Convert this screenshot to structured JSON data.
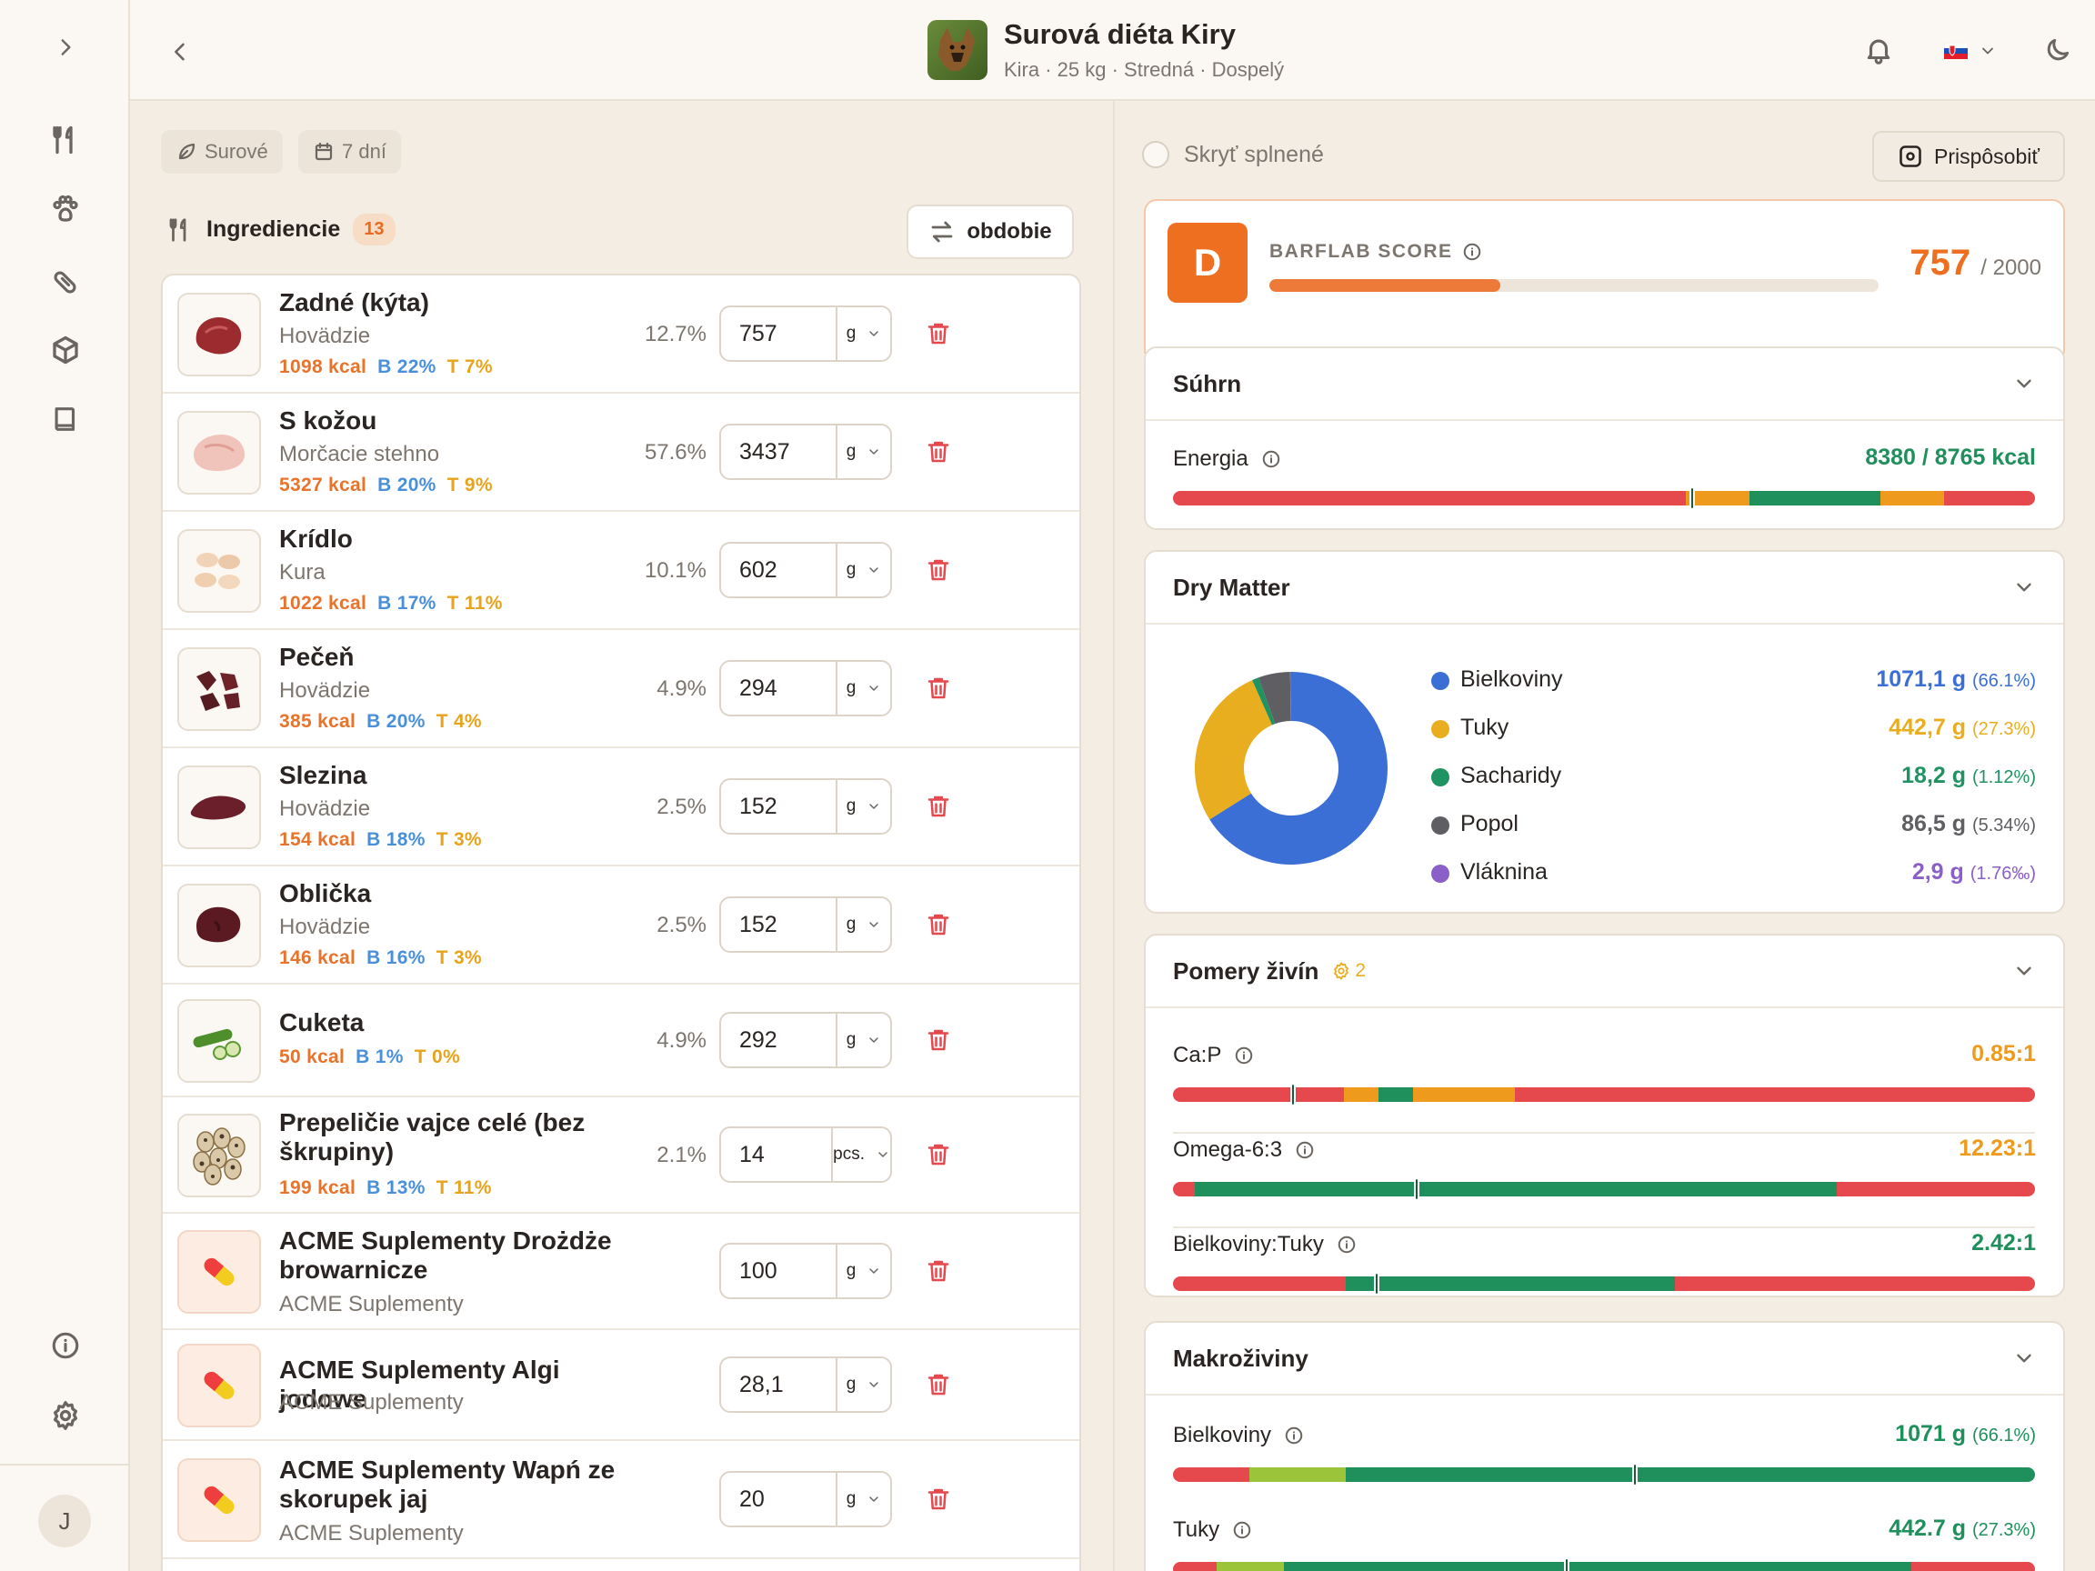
{
  "header": {
    "title": "Surová diéta Kiry",
    "subtitle": "Kira · 25 kg · Stredná · Dospelý"
  },
  "left": {
    "chips": [
      "Surové",
      "7 dní"
    ],
    "ingredients_title": "Ingrediencie",
    "ingredients_count": "13",
    "period_button": "obdobie",
    "items": [
      {
        "name": "Zadné (kýta)",
        "category": "Hovädzie",
        "kcal": "1098 kcal",
        "protein": "B 22%",
        "fat": "T 7%",
        "pct": "12.7%",
        "qty": "757",
        "unit": "g"
      },
      {
        "name": "S kožou",
        "category": "Morčacie stehno",
        "kcal": "5327 kcal",
        "protein": "B 20%",
        "fat": "T 9%",
        "pct": "57.6%",
        "qty": "3437",
        "unit": "g"
      },
      {
        "name": "Krídlo",
        "category": "Kura",
        "kcal": "1022 kcal",
        "protein": "B 17%",
        "fat": "T 11%",
        "pct": "10.1%",
        "qty": "602",
        "unit": "g"
      },
      {
        "name": "Pečeň",
        "category": "Hovädzie",
        "kcal": "385 kcal",
        "protein": "B 20%",
        "fat": "T 4%",
        "pct": "4.9%",
        "qty": "294",
        "unit": "g"
      },
      {
        "name": "Slezina",
        "category": "Hovädzie",
        "kcal": "154 kcal",
        "protein": "B 18%",
        "fat": "T 3%",
        "pct": "2.5%",
        "qty": "152",
        "unit": "g"
      },
      {
        "name": "Oblička",
        "category": "Hovädzie",
        "kcal": "146 kcal",
        "protein": "B 16%",
        "fat": "T 3%",
        "pct": "2.5%",
        "qty": "152",
        "unit": "g"
      },
      {
        "name": "Cuketa",
        "category": "",
        "kcal": "50 kcal",
        "protein": "B 1%",
        "fat": "T 0%",
        "pct": "4.9%",
        "qty": "292",
        "unit": "g"
      },
      {
        "name": "Prepeličie vajce celé (bez škrupiny)",
        "category": "",
        "kcal": "199 kcal",
        "protein": "B 13%",
        "fat": "T 11%",
        "pct": "2.1%",
        "qty": "14",
        "unit": "pcs."
      },
      {
        "name": "ACME Suplementy Drożdże browarnicze",
        "category": "ACME Suplementy",
        "qty": "100",
        "unit": "g"
      },
      {
        "name": "ACME Suplementy Algi jodowe",
        "category": "ACME Suplementy",
        "qty": "28,1",
        "unit": "g"
      },
      {
        "name": "ACME Suplementy Wapń ze skorupek jaj",
        "category": "ACME Suplementy",
        "qty": "20",
        "unit": "g"
      }
    ]
  },
  "right": {
    "hide_completed": "Skryť splnené",
    "customize": "Prispôsobiť",
    "score": {
      "grade": "D",
      "label": "BARFLAB SCORE",
      "value": "757",
      "max": "/ 2000",
      "fraction": 0.3785
    },
    "summary": {
      "title": "Súhrn",
      "energy_label": "Energia",
      "energy_value": "8380 / 8765 kcal"
    },
    "dry_matter": {
      "title": "Dry Matter",
      "items": [
        {
          "name": "Bielkoviny",
          "value": "1071,1 g",
          "pct": "(66.1%)",
          "color": "#3b6fd6",
          "share": 66.1
        },
        {
          "name": "Tuky",
          "value": "442,7 g",
          "pct": "(27.3%)",
          "color": "#e9ae1f",
          "share": 27.3
        },
        {
          "name": "Sacharidy",
          "value": "18,2 g",
          "pct": "(1.12%)",
          "color": "#1f9361",
          "share": 1.12
        },
        {
          "name": "Popol",
          "value": "86,5 g",
          "pct": "(5.34%)",
          "color": "#5f5f63",
          "share": 5.34
        },
        {
          "name": "Vláknina",
          "value": "2,9 g",
          "pct": "(1.76‰)",
          "color": "#8a5fc7",
          "share": 0.176
        }
      ]
    },
    "ratios": {
      "title": "Pomery živín",
      "badge": "2",
      "items": [
        {
          "label": "Ca:P",
          "value": "0.85:1",
          "color": "#ee9a1c"
        },
        {
          "label": "Omega-6:3",
          "value": "12.23:1",
          "color": "#ee9a1c"
        },
        {
          "label": "Bielkoviny:Tuky",
          "value": "2.42:1",
          "color": "#1f8f5c"
        }
      ]
    },
    "macros": {
      "title": "Makroživiny",
      "items": [
        {
          "label": "Bielkoviny",
          "value": "1071 g",
          "pct": "(66.1%)"
        },
        {
          "label": "Tuky",
          "value": "442.7 g",
          "pct": "(27.3%)"
        }
      ]
    }
  }
}
